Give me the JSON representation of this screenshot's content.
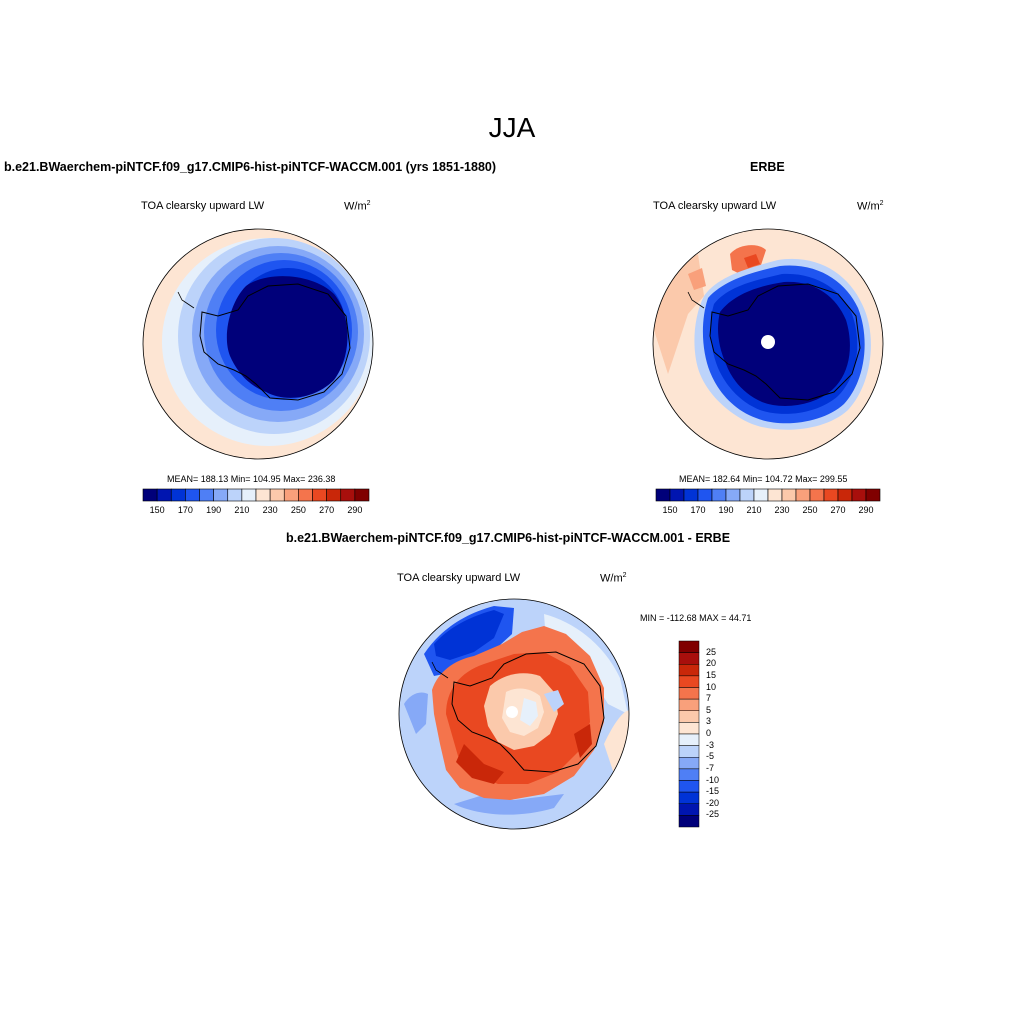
{
  "figure": {
    "season": "JJA",
    "units_base": "W/m",
    "units_exp": "2"
  },
  "panels": {
    "model": {
      "title": "b.e21.BWaerchem-piNTCF.f09_g17.CMIP6-hist-piNTCF-WACCM.001 (yrs 1851-1880)",
      "variable": "TOA clearsky upward LW",
      "stats": "MEAN= 188.13  Min= 104.95  Max= 236.38"
    },
    "obs": {
      "title": "ERBE",
      "variable": "TOA clearsky upward LW",
      "stats": "MEAN= 182.64  Min= 104.72  Max= 299.55"
    },
    "diff": {
      "title": "b.e21.BWaerchem-piNTCF.f09_g17.CMIP6-hist-piNTCF-WACCM.001 - ERBE",
      "variable": "TOA clearsky upward LW",
      "stats": "MIN = -112.68 MAX =  44.71"
    }
  },
  "colorbar_abs": {
    "ticks": [
      "150",
      "170",
      "190",
      "210",
      "230",
      "250",
      "270",
      "290"
    ],
    "colors": [
      "#00007a",
      "#0015b0",
      "#0033d6",
      "#1f55f0",
      "#4f7ff5",
      "#86a9f7",
      "#bcd3fa",
      "#e6f0fb",
      "#fde5d3",
      "#fbc9ab",
      "#f9a07b",
      "#f4744c",
      "#e94821",
      "#c92709",
      "#a80f0c",
      "#800000"
    ]
  },
  "colorbar_diff": {
    "ticks": [
      "25",
      "20",
      "15",
      "10",
      "7",
      "5",
      "3",
      "0",
      "-3",
      "-5",
      "-7",
      "-10",
      "-15",
      "-20",
      "-25"
    ],
    "colors": [
      "#800000",
      "#a80f0c",
      "#c92709",
      "#e94821",
      "#f4744c",
      "#f9a07b",
      "#fbc9ab",
      "#fde5d3",
      "#e6f0fb",
      "#bcd3fa",
      "#86a9f7",
      "#4f7ff5",
      "#1f55f0",
      "#0033d6",
      "#0015b0",
      "#00007a"
    ]
  }
}
